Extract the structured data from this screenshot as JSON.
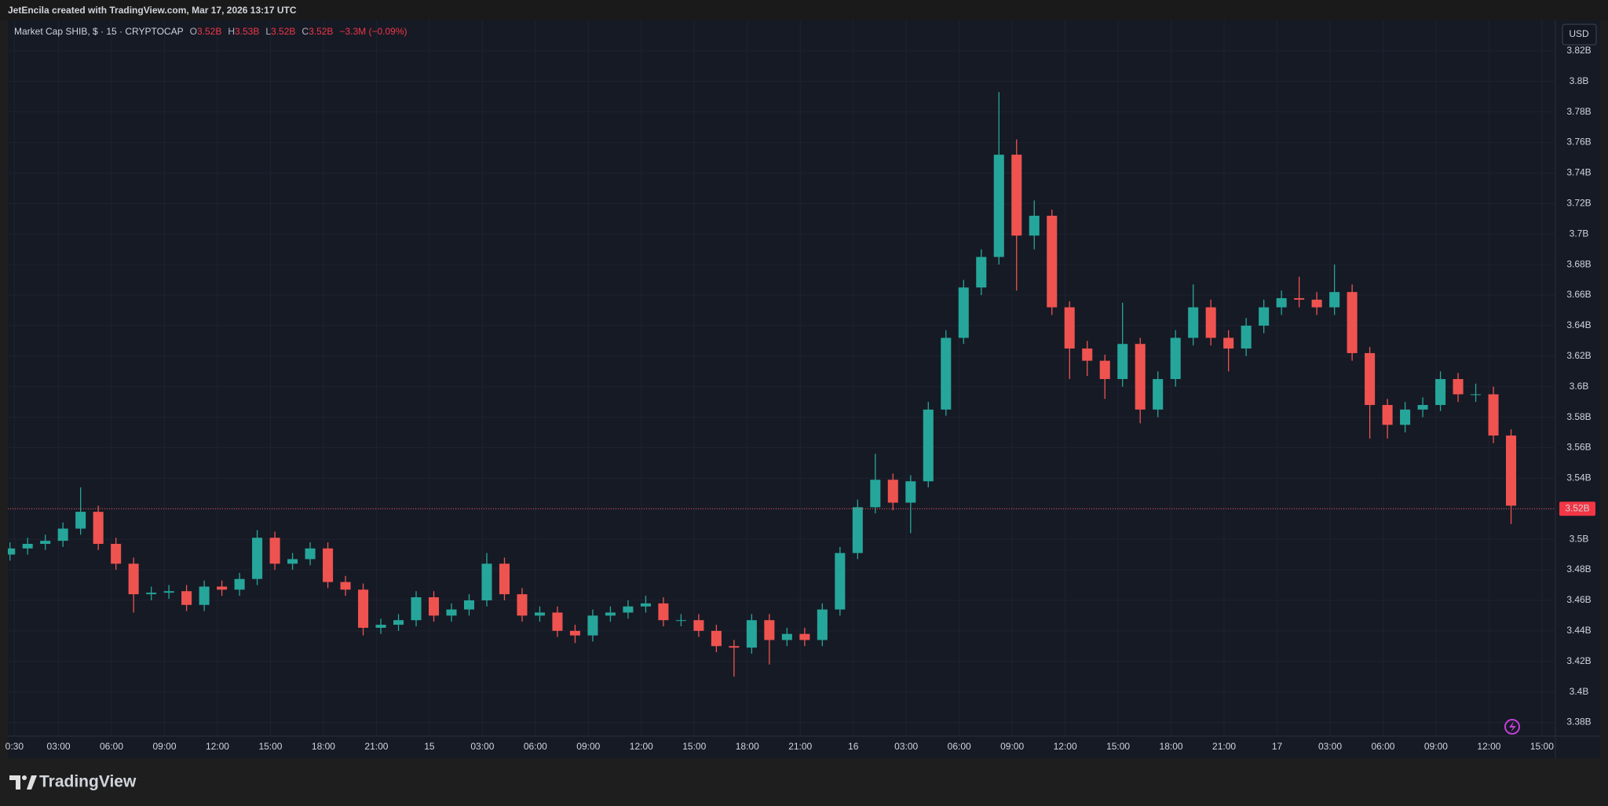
{
  "header": {
    "attribution": "JetEncila created with TradingView.com, Mar 17, 2026 13:17 UTC"
  },
  "legend": {
    "symbol": "Market Cap SHIB, $ · 15 · CRYPTOCAP",
    "ohlc": [
      {
        "key": "O",
        "value": "3.52B"
      },
      {
        "key": "H",
        "value": "3.53B"
      },
      {
        "key": "L",
        "value": "3.52B"
      },
      {
        "key": "C",
        "value": "3.52B"
      }
    ],
    "change": "−3.3M (−0.09%)"
  },
  "currency": "USD",
  "footer": {
    "brand": "TradingView"
  },
  "chart_data": {
    "type": "candlestick",
    "x": [
      0.25,
      1.25,
      2.25,
      3.25,
      4.25,
      5.25,
      6.25,
      7.25,
      8.25,
      9.25,
      10.25,
      11.25,
      12.25,
      13.25,
      14.25,
      15.25,
      16.25,
      17.25,
      18.25,
      19.25,
      20.25,
      21.25,
      22.25,
      23.25,
      24.25,
      25.25,
      26.25,
      27.25,
      28.25,
      29.25,
      30.25,
      31.25,
      32.25,
      33.25,
      34.25,
      35.25,
      36.25,
      37.25,
      38.25,
      39.25,
      40.25,
      41.25,
      42.25,
      43.25,
      44.25,
      45.25,
      46.25,
      47.25,
      48.25,
      49.25,
      50.25,
      51.25,
      52.25,
      53.25,
      54.25,
      55.25,
      56.25,
      57.25,
      58.25,
      59.25,
      60.25,
      61.25,
      62.25,
      63.25,
      64.25,
      65.25,
      66.25,
      67.25,
      68.25,
      69.25,
      70.25,
      71.25,
      72.25,
      73.25,
      74.25,
      75.25,
      76.25,
      77.25,
      78.25,
      79.25,
      80.25,
      81.25,
      82.25,
      83.25,
      84.25,
      85.25
    ],
    "open": [
      3.49,
      3.494,
      3.497,
      3.499,
      3.507,
      3.518,
      3.497,
      3.484,
      3.464,
      3.465,
      3.466,
      3.457,
      3.469,
      3.467,
      3.474,
      3.501,
      3.484,
      3.487,
      3.494,
      3.472,
      3.467,
      3.442,
      3.444,
      3.447,
      3.462,
      3.45,
      3.454,
      3.46,
      3.484,
      3.464,
      3.45,
      3.452,
      3.44,
      3.437,
      3.45,
      3.452,
      3.456,
      3.458,
      3.447,
      3.447,
      3.44,
      3.43,
      3.429,
      3.447,
      3.434,
      3.438,
      3.434,
      3.454,
      3.491,
      3.521,
      3.539,
      3.524,
      3.538,
      3.585,
      3.632,
      3.665,
      3.685,
      3.752,
      3.699,
      3.712,
      3.652,
      3.625,
      3.617,
      3.605,
      3.628,
      3.585,
      3.605,
      3.632,
      3.652,
      3.632,
      3.625,
      3.64,
      3.652,
      3.658,
      3.657,
      3.652,
      3.662,
      3.622,
      3.588,
      3.575,
      3.585,
      3.588,
      3.605,
      3.595,
      3.595,
      3.568
    ],
    "high": [
      3.498,
      3.501,
      3.503,
      3.511,
      3.534,
      3.522,
      3.501,
      3.488,
      3.469,
      3.47,
      3.47,
      3.473,
      3.473,
      3.478,
      3.506,
      3.505,
      3.491,
      3.498,
      3.498,
      3.476,
      3.471,
      3.448,
      3.451,
      3.466,
      3.466,
      3.458,
      3.464,
      3.491,
      3.488,
      3.468,
      3.456,
      3.456,
      3.444,
      3.454,
      3.456,
      3.46,
      3.463,
      3.462,
      3.451,
      3.451,
      3.444,
      3.434,
      3.451,
      3.451,
      3.442,
      3.442,
      3.458,
      3.495,
      3.526,
      3.556,
      3.543,
      3.542,
      3.59,
      3.637,
      3.67,
      3.69,
      3.793,
      3.762,
      3.722,
      3.716,
      3.656,
      3.63,
      3.621,
      3.655,
      3.632,
      3.61,
      3.637,
      3.667,
      3.657,
      3.637,
      3.645,
      3.657,
      3.663,
      3.672,
      3.662,
      3.68,
      3.667,
      3.626,
      3.592,
      3.59,
      3.593,
      3.61,
      3.609,
      3.602,
      3.6,
      3.572
    ],
    "low": [
      3.486,
      3.49,
      3.493,
      3.495,
      3.503,
      3.493,
      3.48,
      3.452,
      3.46,
      3.461,
      3.453,
      3.453,
      3.463,
      3.463,
      3.47,
      3.48,
      3.48,
      3.483,
      3.468,
      3.463,
      3.437,
      3.438,
      3.44,
      3.443,
      3.446,
      3.446,
      3.45,
      3.456,
      3.46,
      3.446,
      3.446,
      3.436,
      3.432,
      3.433,
      3.446,
      3.448,
      3.452,
      3.443,
      3.443,
      3.436,
      3.426,
      3.41,
      3.425,
      3.418,
      3.43,
      3.43,
      3.43,
      3.45,
      3.487,
      3.517,
      3.519,
      3.504,
      3.534,
      3.581,
      3.628,
      3.66,
      3.68,
      3.663,
      3.69,
      3.647,
      3.605,
      3.607,
      3.592,
      3.6,
      3.576,
      3.58,
      3.6,
      3.627,
      3.627,
      3.61,
      3.62,
      3.635,
      3.647,
      3.652,
      3.647,
      3.647,
      3.617,
      3.566,
      3.566,
      3.57,
      3.58,
      3.584,
      3.59,
      3.59,
      3.563,
      3.51
    ],
    "close": [
      3.494,
      3.497,
      3.499,
      3.507,
      3.518,
      3.497,
      3.484,
      3.464,
      3.465,
      3.466,
      3.457,
      3.469,
      3.467,
      3.474,
      3.501,
      3.484,
      3.487,
      3.494,
      3.472,
      3.467,
      3.442,
      3.444,
      3.447,
      3.462,
      3.45,
      3.454,
      3.46,
      3.484,
      3.464,
      3.45,
      3.452,
      3.44,
      3.437,
      3.45,
      3.452,
      3.456,
      3.458,
      3.447,
      3.447,
      3.44,
      3.43,
      3.429,
      3.447,
      3.434,
      3.438,
      3.434,
      3.454,
      3.491,
      3.521,
      3.539,
      3.524,
      3.538,
      3.585,
      3.632,
      3.665,
      3.685,
      3.752,
      3.699,
      3.712,
      3.652,
      3.625,
      3.617,
      3.605,
      3.628,
      3.585,
      3.605,
      3.632,
      3.652,
      3.632,
      3.625,
      3.64,
      3.652,
      3.658,
      3.657,
      3.652,
      3.662,
      3.622,
      3.588,
      3.575,
      3.585,
      3.588,
      3.605,
      3.595,
      3.595,
      3.568,
      3.522
    ],
    "up_color": "#26a69a",
    "down_color": "#ef5350",
    "xlim": [
      0.13,
      87.76
    ],
    "xticks": [
      {
        "value": 0.5,
        "label": "0:30"
      },
      {
        "value": 3,
        "label": "03:00"
      },
      {
        "value": 6,
        "label": "06:00"
      },
      {
        "value": 9,
        "label": "09:00"
      },
      {
        "value": 12,
        "label": "12:00"
      },
      {
        "value": 15,
        "label": "15:00"
      },
      {
        "value": 18,
        "label": "18:00"
      },
      {
        "value": 21,
        "label": "21:00"
      },
      {
        "value": 24,
        "label": "15"
      },
      {
        "value": 27,
        "label": "03:00"
      },
      {
        "value": 30,
        "label": "06:00"
      },
      {
        "value": 33,
        "label": "09:00"
      },
      {
        "value": 36,
        "label": "12:00"
      },
      {
        "value": 39,
        "label": "15:00"
      },
      {
        "value": 42,
        "label": "18:00"
      },
      {
        "value": 45,
        "label": "21:00"
      },
      {
        "value": 48,
        "label": "16"
      },
      {
        "value": 51,
        "label": "03:00"
      },
      {
        "value": 54,
        "label": "06:00"
      },
      {
        "value": 57,
        "label": "09:00"
      },
      {
        "value": 60,
        "label": "12:00"
      },
      {
        "value": 63,
        "label": "15:00"
      },
      {
        "value": 66,
        "label": "18:00"
      },
      {
        "value": 69,
        "label": "21:00"
      },
      {
        "value": 72,
        "label": "17"
      },
      {
        "value": 75,
        "label": "03:00"
      },
      {
        "value": 78,
        "label": "06:00"
      },
      {
        "value": 81,
        "label": "09:00"
      },
      {
        "value": 84,
        "label": "12:00"
      },
      {
        "value": 87,
        "label": "15:00"
      }
    ],
    "ylim": [
      3.371,
      3.84
    ],
    "yticks": [
      {
        "value": 3.38,
        "label": "3.38B"
      },
      {
        "value": 3.4,
        "label": "3.4B"
      },
      {
        "value": 3.42,
        "label": "3.42B"
      },
      {
        "value": 3.44,
        "label": "3.44B"
      },
      {
        "value": 3.46,
        "label": "3.46B"
      },
      {
        "value": 3.48,
        "label": "3.48B"
      },
      {
        "value": 3.5,
        "label": "3.5B"
      },
      {
        "value": 3.52,
        "label": "3.52B"
      },
      {
        "value": 3.54,
        "label": "3.54B"
      },
      {
        "value": 3.56,
        "label": "3.56B"
      },
      {
        "value": 3.58,
        "label": "3.58B"
      },
      {
        "value": 3.6,
        "label": "3.6B"
      },
      {
        "value": 3.62,
        "label": "3.62B"
      },
      {
        "value": 3.64,
        "label": "3.64B"
      },
      {
        "value": 3.66,
        "label": "3.66B"
      },
      {
        "value": 3.68,
        "label": "3.68B"
      },
      {
        "value": 3.7,
        "label": "3.7B"
      },
      {
        "value": 3.72,
        "label": "3.72B"
      },
      {
        "value": 3.74,
        "label": "3.74B"
      },
      {
        "value": 3.76,
        "label": "3.76B"
      },
      {
        "value": 3.78,
        "label": "3.78B"
      },
      {
        "value": 3.8,
        "label": "3.8B"
      },
      {
        "value": 3.82,
        "label": "3.82B"
      }
    ],
    "grid": true,
    "last_price": {
      "value": 3.52,
      "label": "3.52B"
    }
  }
}
